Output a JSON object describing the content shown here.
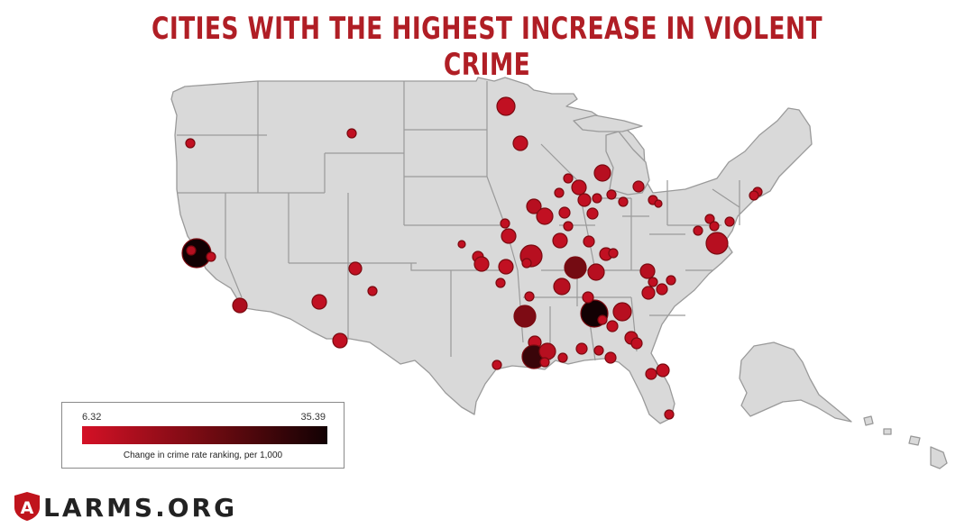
{
  "title": "CITIES WITH THE HIGHEST INCREASE IN VIOLENT CRIME",
  "legend": {
    "min_label": "6.32",
    "max_label": "35.39",
    "caption": "Change in crime rate ranking, per 1,000",
    "min_value": 6.32,
    "max_value": 35.39
  },
  "logo": {
    "letter": "A",
    "text": "LARMS.ORG"
  },
  "colors": {
    "title": "#b01e25",
    "land": "#d9d9d9",
    "border": "#9a9a9a",
    "low": "#d41126",
    "mid": "#6a0a10",
    "high": "#120103"
  }
}
